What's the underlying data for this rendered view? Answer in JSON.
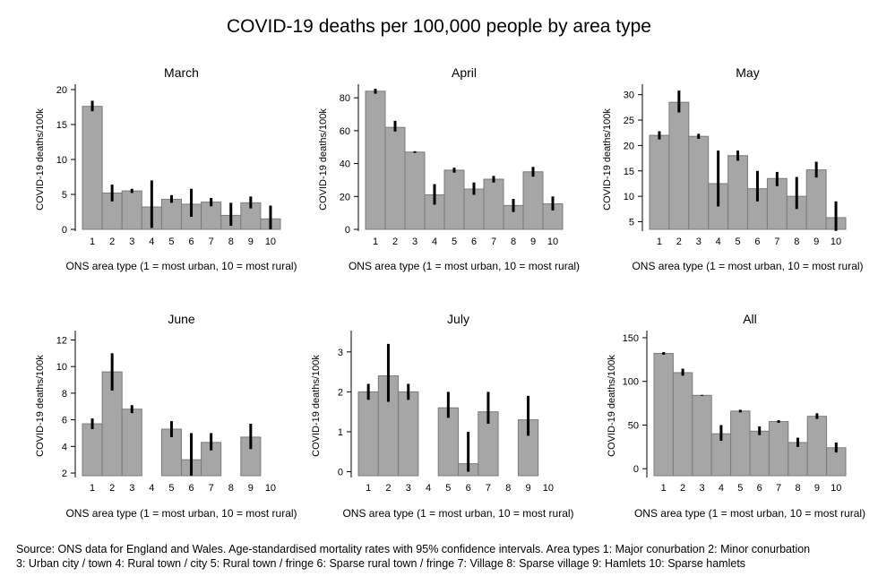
{
  "title": "COVID-19 deaths per 100,000 people by area type",
  "caption": {
    "line1": "Source: ONS data for England and Wales. Age-standardised mortality rates with 95% confidence intervals. Area types 1: Major conurbation 2: Minor conurbation",
    "line2": "3: Urban city / town 4: Rural town / city 5: Rural town / fringe 6: Sparse rural town / fringe 7: Village 8: Sparse village 9: Hamlets 10: Sparse hamlets"
  },
  "colors": {
    "bar": "#a6a6a6",
    "bar_edge": "#7a7a7a",
    "ci": "#000000"
  },
  "chart_data": [
    {
      "type": "bar",
      "title": "March",
      "xlabel": "ONS area type (1 = most urban, 10 = most rural)",
      "ylabel": "COVID-19 deaths/100k",
      "categories": [
        "1",
        "2",
        "3",
        "4",
        "5",
        "6",
        "7",
        "8",
        "9",
        "10"
      ],
      "values": [
        17.6,
        5.2,
        5.5,
        3.2,
        4.3,
        3.6,
        3.9,
        2.0,
        3.8,
        1.5
      ],
      "ci_low": [
        16.9,
        4.0,
        5.2,
        0.2,
        3.8,
        1.8,
        3.3,
        0.5,
        3.0,
        0.0
      ],
      "ci_high": [
        18.4,
        6.4,
        5.8,
        7.0,
        4.9,
        5.8,
        4.5,
        3.8,
        4.7,
        3.4
      ],
      "ylim": [
        0,
        20
      ],
      "yticks": [
        0,
        5,
        10,
        15,
        20
      ],
      "baseline": 0
    },
    {
      "type": "bar",
      "title": "April",
      "xlabel": "ONS area type (1 = most urban, 10 = most rural)",
      "ylabel": "COVID-19 deaths/100k",
      "categories": [
        "1",
        "2",
        "3",
        "4",
        "5",
        "6",
        "7",
        "8",
        "9",
        "10"
      ],
      "values": [
        84,
        62,
        47,
        21,
        36,
        24.5,
        30.5,
        14.5,
        35,
        15.5
      ],
      "ci_low": [
        82.5,
        59.5,
        46.5,
        15,
        34.5,
        21,
        28.5,
        10.5,
        32,
        11.5
      ],
      "ci_high": [
        85.5,
        66,
        47.5,
        27.5,
        37.5,
        28.5,
        32.5,
        18.5,
        38,
        20
      ],
      "ylim": [
        0,
        85
      ],
      "yticks": [
        0,
        20,
        40,
        60,
        80
      ],
      "baseline": 0
    },
    {
      "type": "bar",
      "title": "May",
      "xlabel": "ONS area type (1 = most urban, 10 = most rural)",
      "ylabel": "COVID-19 deaths/100k",
      "categories": [
        "1",
        "2",
        "3",
        "4",
        "5",
        "6",
        "7",
        "8",
        "9",
        "10"
      ],
      "values": [
        22,
        28.5,
        21.8,
        12.5,
        18,
        11.5,
        13.5,
        10,
        15.2,
        5.8
      ],
      "ci_low": [
        21.2,
        26.5,
        21.3,
        8,
        17,
        9,
        12,
        7.5,
        13.7,
        3.2
      ],
      "ci_high": [
        22.8,
        30.8,
        22.3,
        19,
        19,
        15,
        14.8,
        13.8,
        16.8,
        9
      ],
      "ylim": [
        3.5,
        31
      ],
      "yticks": [
        5,
        10,
        15,
        20,
        25,
        30
      ],
      "baseline": 3.5
    },
    {
      "type": "bar",
      "title": "June",
      "xlabel": "ONS area type (1 = most urban, 10 = most rural)",
      "ylabel": "COVID-19 deaths/100k",
      "categories": [
        "1",
        "2",
        "3",
        "4",
        "5",
        "6",
        "7",
        "8",
        "9",
        "10"
      ],
      "values": [
        5.7,
        9.6,
        6.8,
        null,
        5.3,
        3.0,
        4.3,
        null,
        4.7,
        null
      ],
      "ci_low": [
        5.3,
        8.2,
        6.5,
        null,
        4.7,
        1.8,
        3.7,
        null,
        3.8,
        null
      ],
      "ci_high": [
        6.1,
        11.0,
        7.1,
        null,
        5.9,
        5.0,
        5.0,
        null,
        5.7,
        null
      ],
      "ylim": [
        1.8,
        12.3
      ],
      "yticks": [
        2,
        4,
        6,
        8,
        10,
        12
      ],
      "baseline": 1.8
    },
    {
      "type": "bar",
      "title": "July",
      "xlabel": "ONS area type (1 = most urban, 10 = most rural)",
      "ylabel": "COVID-19 deaths/100k",
      "categories": [
        "1",
        "2",
        "3",
        "4",
        "5",
        "6",
        "7",
        "8",
        "9",
        "10"
      ],
      "values": [
        2.0,
        2.4,
        2.0,
        null,
        1.6,
        0.2,
        1.5,
        null,
        1.3,
        null
      ],
      "ci_low": [
        1.8,
        1.75,
        1.8,
        null,
        1.35,
        0.0,
        1.2,
        null,
        0.9,
        null
      ],
      "ci_high": [
        2.2,
        3.2,
        2.2,
        null,
        2.0,
        1.0,
        2.0,
        null,
        1.9,
        null
      ],
      "ylim": [
        -0.1,
        3.4
      ],
      "yticks": [
        0,
        1,
        2,
        3
      ],
      "baseline": -0.1
    },
    {
      "type": "bar",
      "title": "All",
      "xlabel": "ONS area type (1 = most urban, 10 = most rural)",
      "ylabel": "COVID-19 deaths/100k",
      "categories": [
        "1",
        "2",
        "3",
        "4",
        "5",
        "6",
        "7",
        "8",
        "9",
        "10"
      ],
      "values": [
        132,
        110,
        84,
        40,
        66,
        43,
        54,
        30,
        60,
        24
      ],
      "ci_low": [
        130.5,
        106.5,
        83.5,
        32,
        64.5,
        38.5,
        52.5,
        25,
        57,
        18.5
      ],
      "ci_high": [
        133.5,
        114.5,
        84.5,
        50,
        67.5,
        48.5,
        55.5,
        35.5,
        63.5,
        30
      ],
      "ylim": [
        -8,
        152
      ],
      "yticks": [
        0,
        50,
        100,
        150
      ],
      "baseline": -8
    }
  ]
}
